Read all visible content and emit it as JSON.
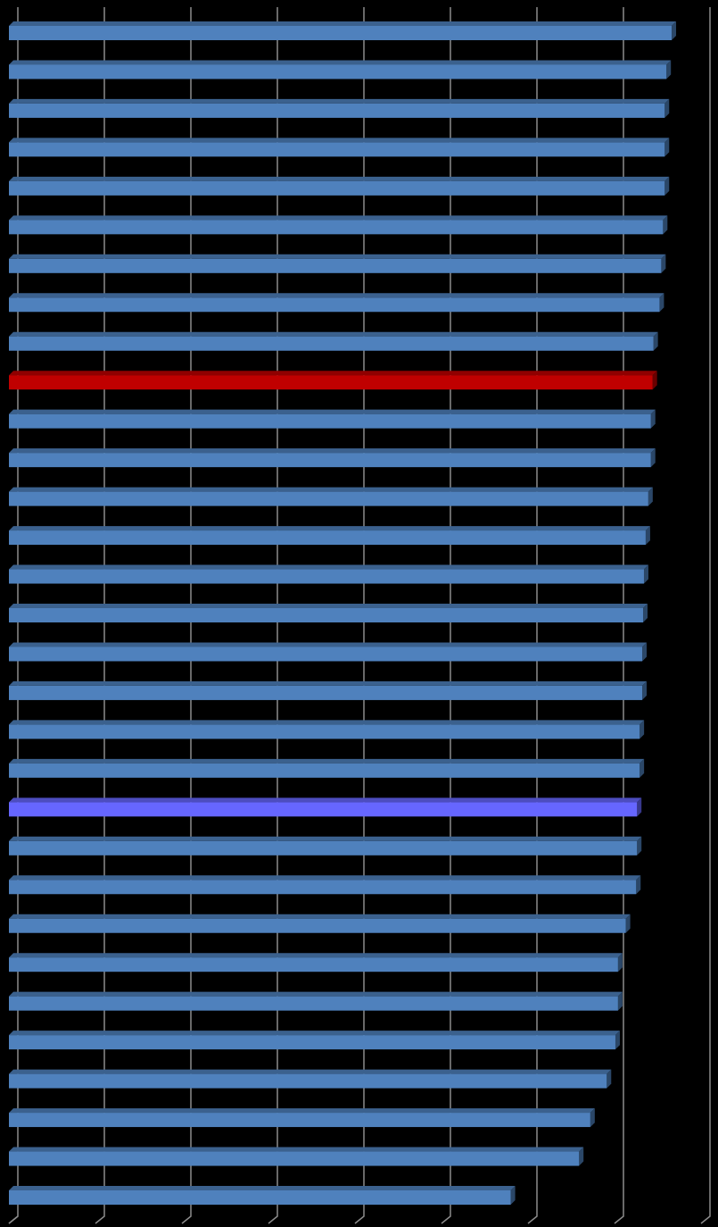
{
  "chart_data": {
    "type": "bar",
    "orientation": "horizontal",
    "categories": [
      null,
      null,
      null,
      null,
      null,
      null,
      null,
      null,
      null,
      null,
      null,
      null,
      null,
      null,
      null,
      null,
      null,
      null,
      null,
      null,
      null,
      null,
      null,
      null,
      null,
      null,
      null,
      null,
      null,
      null,
      null
    ],
    "values": [
      7.66,
      7.6,
      7.58,
      7.58,
      7.58,
      7.56,
      7.54,
      7.52,
      7.45,
      7.44,
      7.42,
      7.42,
      7.39,
      7.36,
      7.34,
      7.33,
      7.32,
      7.32,
      7.29,
      7.29,
      7.26,
      7.26,
      7.25,
      7.13,
      7.04,
      7.04,
      7.01,
      6.91,
      6.72,
      6.59,
      5.8
    ],
    "colors": [
      "#4f81bd",
      "#4f81bd",
      "#4f81bd",
      "#4f81bd",
      "#4f81bd",
      "#4f81bd",
      "#4f81bd",
      "#4f81bd",
      "#4f81bd",
      "#c00000",
      "#4f81bd",
      "#4f81bd",
      "#4f81bd",
      "#4f81bd",
      "#4f81bd",
      "#4f81bd",
      "#4f81bd",
      "#4f81bd",
      "#4f81bd",
      "#4f81bd",
      "#6666ff",
      "#4f81bd",
      "#4f81bd",
      "#4f81bd",
      "#4f81bd",
      "#4f81bd",
      "#4f81bd",
      "#4f81bd",
      "#4f81bd",
      "#4f81bd",
      "#4f81bd"
    ],
    "xlim": [
      0,
      8
    ],
    "xticks": [
      0,
      1,
      2,
      3,
      4,
      5,
      6,
      7,
      8
    ],
    "grid": true
  }
}
